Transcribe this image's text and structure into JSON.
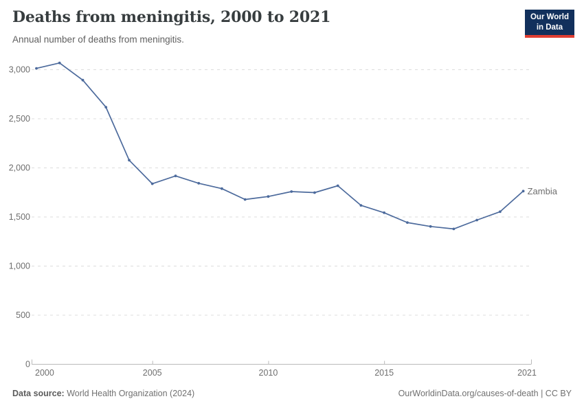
{
  "header": {
    "title": "Deaths from meningitis, 2000 to 2021",
    "subtitle": "Annual number of deaths from meningitis."
  },
  "logo": {
    "line1": "Our World",
    "line2": "in Data"
  },
  "footer": {
    "source_label": "Data source:",
    "source_value": "World Health Organization (2024)",
    "attribution": "OurWorldinData.org/causes-of-death | CC BY"
  },
  "colors": {
    "series_blue": "#4c6a9c",
    "gridline": "#dcdcdc",
    "axis": "#b9b9b9",
    "tick_text": "#6e6e6e",
    "logo_navy": "#12305c",
    "logo_red": "#e03e32"
  },
  "chart_data": {
    "type": "line",
    "title": "Deaths from meningitis, 2000 to 2021",
    "subtitle": "Annual number of deaths from meningitis.",
    "x": [
      2000,
      2001,
      2002,
      2003,
      2004,
      2005,
      2006,
      2007,
      2008,
      2009,
      2010,
      2011,
      2012,
      2013,
      2014,
      2015,
      2016,
      2017,
      2018,
      2019,
      2020,
      2021
    ],
    "series": [
      {
        "name": "Zambia",
        "values": [
          3010,
          3065,
          2890,
          2615,
          2075,
          1835,
          1915,
          1840,
          1785,
          1675,
          1705,
          1755,
          1745,
          1815,
          1615,
          1540,
          1440,
          1400,
          1375,
          1465,
          1550,
          1760
        ]
      }
    ],
    "xlabel": "",
    "ylabel": "",
    "ylim": [
      0,
      3000
    ],
    "yticks": [
      0,
      500,
      1000,
      1500,
      2000,
      2500,
      3000
    ],
    "xticks": [
      2000,
      2005,
      2010,
      2015,
      2021
    ],
    "grid": "horizontal-dashed",
    "legend": "line-end-label"
  }
}
